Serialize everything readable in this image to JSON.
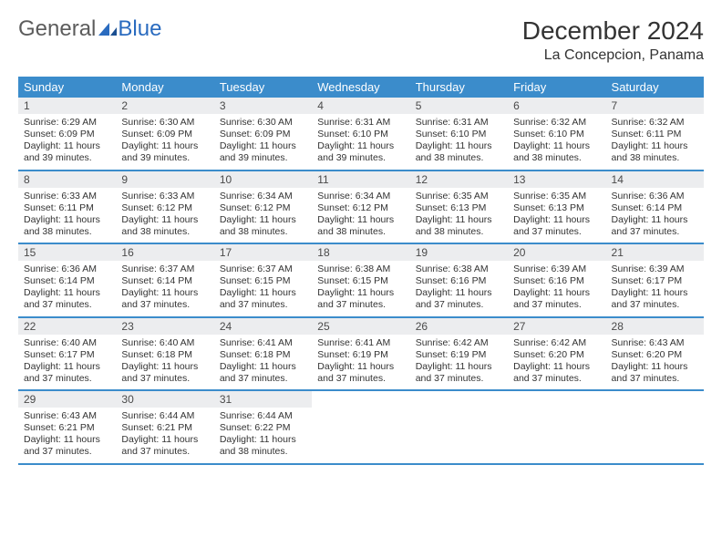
{
  "logo": {
    "general": "General",
    "blue": "Blue"
  },
  "header": {
    "month": "December 2024",
    "location": "La Concepcion, Panama"
  },
  "colors": {
    "header_bar": "#3b8ccb",
    "daynum_bg": "#ecedef",
    "week_border": "#3b8ccb",
    "logo_general": "#5c5c5c",
    "logo_blue": "#2a6bbf"
  },
  "weekdays": [
    "Sunday",
    "Monday",
    "Tuesday",
    "Wednesday",
    "Thursday",
    "Friday",
    "Saturday"
  ],
  "weeks": [
    [
      {
        "n": "1",
        "sr": "Sunrise: 6:29 AM",
        "ss": "Sunset: 6:09 PM",
        "dl": "Daylight: 11 hours and 39 minutes."
      },
      {
        "n": "2",
        "sr": "Sunrise: 6:30 AM",
        "ss": "Sunset: 6:09 PM",
        "dl": "Daylight: 11 hours and 39 minutes."
      },
      {
        "n": "3",
        "sr": "Sunrise: 6:30 AM",
        "ss": "Sunset: 6:09 PM",
        "dl": "Daylight: 11 hours and 39 minutes."
      },
      {
        "n": "4",
        "sr": "Sunrise: 6:31 AM",
        "ss": "Sunset: 6:10 PM",
        "dl": "Daylight: 11 hours and 39 minutes."
      },
      {
        "n": "5",
        "sr": "Sunrise: 6:31 AM",
        "ss": "Sunset: 6:10 PM",
        "dl": "Daylight: 11 hours and 38 minutes."
      },
      {
        "n": "6",
        "sr": "Sunrise: 6:32 AM",
        "ss": "Sunset: 6:10 PM",
        "dl": "Daylight: 11 hours and 38 minutes."
      },
      {
        "n": "7",
        "sr": "Sunrise: 6:32 AM",
        "ss": "Sunset: 6:11 PM",
        "dl": "Daylight: 11 hours and 38 minutes."
      }
    ],
    [
      {
        "n": "8",
        "sr": "Sunrise: 6:33 AM",
        "ss": "Sunset: 6:11 PM",
        "dl": "Daylight: 11 hours and 38 minutes."
      },
      {
        "n": "9",
        "sr": "Sunrise: 6:33 AM",
        "ss": "Sunset: 6:12 PM",
        "dl": "Daylight: 11 hours and 38 minutes."
      },
      {
        "n": "10",
        "sr": "Sunrise: 6:34 AM",
        "ss": "Sunset: 6:12 PM",
        "dl": "Daylight: 11 hours and 38 minutes."
      },
      {
        "n": "11",
        "sr": "Sunrise: 6:34 AM",
        "ss": "Sunset: 6:12 PM",
        "dl": "Daylight: 11 hours and 38 minutes."
      },
      {
        "n": "12",
        "sr": "Sunrise: 6:35 AM",
        "ss": "Sunset: 6:13 PM",
        "dl": "Daylight: 11 hours and 38 minutes."
      },
      {
        "n": "13",
        "sr": "Sunrise: 6:35 AM",
        "ss": "Sunset: 6:13 PM",
        "dl": "Daylight: 11 hours and 37 minutes."
      },
      {
        "n": "14",
        "sr": "Sunrise: 6:36 AM",
        "ss": "Sunset: 6:14 PM",
        "dl": "Daylight: 11 hours and 37 minutes."
      }
    ],
    [
      {
        "n": "15",
        "sr": "Sunrise: 6:36 AM",
        "ss": "Sunset: 6:14 PM",
        "dl": "Daylight: 11 hours and 37 minutes."
      },
      {
        "n": "16",
        "sr": "Sunrise: 6:37 AM",
        "ss": "Sunset: 6:14 PM",
        "dl": "Daylight: 11 hours and 37 minutes."
      },
      {
        "n": "17",
        "sr": "Sunrise: 6:37 AM",
        "ss": "Sunset: 6:15 PM",
        "dl": "Daylight: 11 hours and 37 minutes."
      },
      {
        "n": "18",
        "sr": "Sunrise: 6:38 AM",
        "ss": "Sunset: 6:15 PM",
        "dl": "Daylight: 11 hours and 37 minutes."
      },
      {
        "n": "19",
        "sr": "Sunrise: 6:38 AM",
        "ss": "Sunset: 6:16 PM",
        "dl": "Daylight: 11 hours and 37 minutes."
      },
      {
        "n": "20",
        "sr": "Sunrise: 6:39 AM",
        "ss": "Sunset: 6:16 PM",
        "dl": "Daylight: 11 hours and 37 minutes."
      },
      {
        "n": "21",
        "sr": "Sunrise: 6:39 AM",
        "ss": "Sunset: 6:17 PM",
        "dl": "Daylight: 11 hours and 37 minutes."
      }
    ],
    [
      {
        "n": "22",
        "sr": "Sunrise: 6:40 AM",
        "ss": "Sunset: 6:17 PM",
        "dl": "Daylight: 11 hours and 37 minutes."
      },
      {
        "n": "23",
        "sr": "Sunrise: 6:40 AM",
        "ss": "Sunset: 6:18 PM",
        "dl": "Daylight: 11 hours and 37 minutes."
      },
      {
        "n": "24",
        "sr": "Sunrise: 6:41 AM",
        "ss": "Sunset: 6:18 PM",
        "dl": "Daylight: 11 hours and 37 minutes."
      },
      {
        "n": "25",
        "sr": "Sunrise: 6:41 AM",
        "ss": "Sunset: 6:19 PM",
        "dl": "Daylight: 11 hours and 37 minutes."
      },
      {
        "n": "26",
        "sr": "Sunrise: 6:42 AM",
        "ss": "Sunset: 6:19 PM",
        "dl": "Daylight: 11 hours and 37 minutes."
      },
      {
        "n": "27",
        "sr": "Sunrise: 6:42 AM",
        "ss": "Sunset: 6:20 PM",
        "dl": "Daylight: 11 hours and 37 minutes."
      },
      {
        "n": "28",
        "sr": "Sunrise: 6:43 AM",
        "ss": "Sunset: 6:20 PM",
        "dl": "Daylight: 11 hours and 37 minutes."
      }
    ],
    [
      {
        "n": "29",
        "sr": "Sunrise: 6:43 AM",
        "ss": "Sunset: 6:21 PM",
        "dl": "Daylight: 11 hours and 37 minutes."
      },
      {
        "n": "30",
        "sr": "Sunrise: 6:44 AM",
        "ss": "Sunset: 6:21 PM",
        "dl": "Daylight: 11 hours and 37 minutes."
      },
      {
        "n": "31",
        "sr": "Sunrise: 6:44 AM",
        "ss": "Sunset: 6:22 PM",
        "dl": "Daylight: 11 hours and 38 minutes."
      },
      null,
      null,
      null,
      null
    ]
  ]
}
